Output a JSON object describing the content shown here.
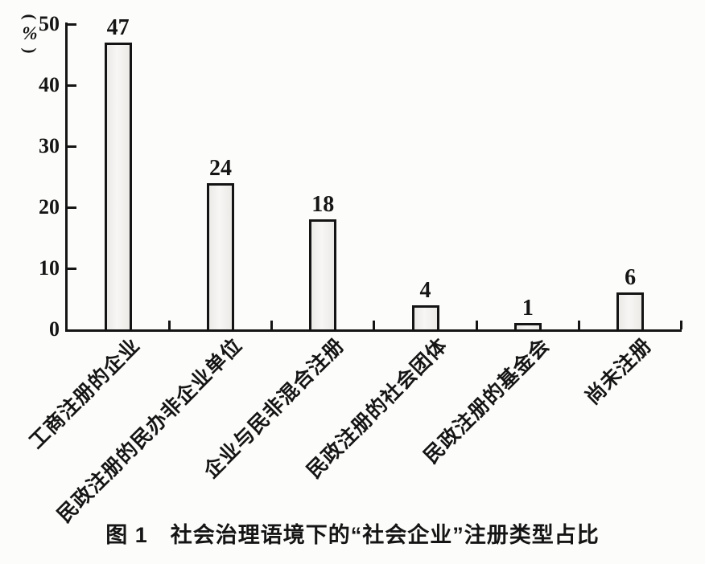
{
  "chart_data": {
    "type": "bar",
    "title": "图 1　社会治理语境下的“社会企业”注册类型占比",
    "ylabel": "(%)",
    "xlabel": "",
    "categories": [
      "工商注册的企业",
      "民政注册的民办非企业单位",
      "企业与民非混合注册",
      "民政注册的社会团体",
      "民政注册的基金会",
      "尚未注册"
    ],
    "values": [
      47,
      24,
      18,
      4,
      1,
      6
    ],
    "yticks": [
      0,
      10,
      20,
      30,
      40,
      50
    ],
    "ylim": [
      0,
      50
    ],
    "grid": false,
    "legend_position": "none",
    "value_labels_shown": true,
    "colors": {
      "axis": "#151515",
      "text": "#151515",
      "bar_fill": "#ebeae7",
      "bar_border": "#141414",
      "background": "#fcfcfa"
    }
  }
}
